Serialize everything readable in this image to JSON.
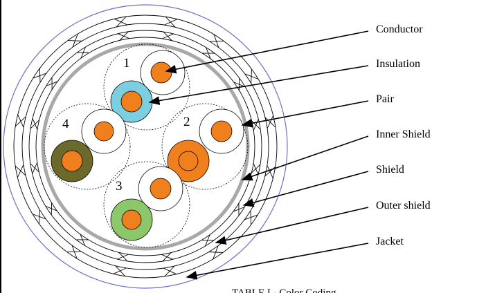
{
  "pair_numbers": [
    "1",
    "2",
    "3",
    "4"
  ],
  "callouts": [
    "Conductor",
    "Insulation",
    "Pair",
    "Inner Shield",
    "Shield",
    "Outer shield",
    "Jacket"
  ],
  "caption": "TABLE I  -  Color Coding"
}
